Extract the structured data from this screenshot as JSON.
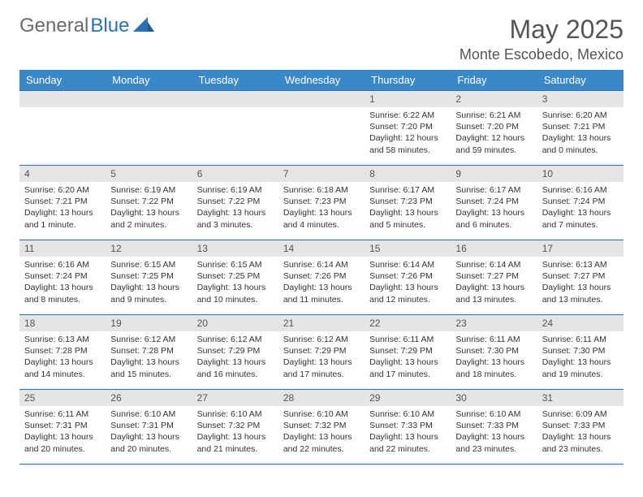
{
  "brand": {
    "part1": "General",
    "part2": "Blue"
  },
  "title": "May 2025",
  "location": "Monte Escobedo, Mexico",
  "colors": {
    "header_bg": "#3b88c9",
    "border": "#2a70b8",
    "daynum_bg": "#e5e5e5",
    "text": "#333333",
    "title_text": "#555555"
  },
  "dayHeaders": [
    "Sunday",
    "Monday",
    "Tuesday",
    "Wednesday",
    "Thursday",
    "Friday",
    "Saturday"
  ],
  "weeks": [
    [
      null,
      null,
      null,
      null,
      {
        "n": "1",
        "sr": "Sunrise: 6:22 AM",
        "ss": "Sunset: 7:20 PM",
        "dl": "Daylight: 12 hours and 58 minutes."
      },
      {
        "n": "2",
        "sr": "Sunrise: 6:21 AM",
        "ss": "Sunset: 7:20 PM",
        "dl": "Daylight: 12 hours and 59 minutes."
      },
      {
        "n": "3",
        "sr": "Sunrise: 6:20 AM",
        "ss": "Sunset: 7:21 PM",
        "dl": "Daylight: 13 hours and 0 minutes."
      }
    ],
    [
      {
        "n": "4",
        "sr": "Sunrise: 6:20 AM",
        "ss": "Sunset: 7:21 PM",
        "dl": "Daylight: 13 hours and 1 minute."
      },
      {
        "n": "5",
        "sr": "Sunrise: 6:19 AM",
        "ss": "Sunset: 7:22 PM",
        "dl": "Daylight: 13 hours and 2 minutes."
      },
      {
        "n": "6",
        "sr": "Sunrise: 6:19 AM",
        "ss": "Sunset: 7:22 PM",
        "dl": "Daylight: 13 hours and 3 minutes."
      },
      {
        "n": "7",
        "sr": "Sunrise: 6:18 AM",
        "ss": "Sunset: 7:23 PM",
        "dl": "Daylight: 13 hours and 4 minutes."
      },
      {
        "n": "8",
        "sr": "Sunrise: 6:17 AM",
        "ss": "Sunset: 7:23 PM",
        "dl": "Daylight: 13 hours and 5 minutes."
      },
      {
        "n": "9",
        "sr": "Sunrise: 6:17 AM",
        "ss": "Sunset: 7:24 PM",
        "dl": "Daylight: 13 hours and 6 minutes."
      },
      {
        "n": "10",
        "sr": "Sunrise: 6:16 AM",
        "ss": "Sunset: 7:24 PM",
        "dl": "Daylight: 13 hours and 7 minutes."
      }
    ],
    [
      {
        "n": "11",
        "sr": "Sunrise: 6:16 AM",
        "ss": "Sunset: 7:24 PM",
        "dl": "Daylight: 13 hours and 8 minutes."
      },
      {
        "n": "12",
        "sr": "Sunrise: 6:15 AM",
        "ss": "Sunset: 7:25 PM",
        "dl": "Daylight: 13 hours and 9 minutes."
      },
      {
        "n": "13",
        "sr": "Sunrise: 6:15 AM",
        "ss": "Sunset: 7:25 PM",
        "dl": "Daylight: 13 hours and 10 minutes."
      },
      {
        "n": "14",
        "sr": "Sunrise: 6:14 AM",
        "ss": "Sunset: 7:26 PM",
        "dl": "Daylight: 13 hours and 11 minutes."
      },
      {
        "n": "15",
        "sr": "Sunrise: 6:14 AM",
        "ss": "Sunset: 7:26 PM",
        "dl": "Daylight: 13 hours and 12 minutes."
      },
      {
        "n": "16",
        "sr": "Sunrise: 6:14 AM",
        "ss": "Sunset: 7:27 PM",
        "dl": "Daylight: 13 hours and 13 minutes."
      },
      {
        "n": "17",
        "sr": "Sunrise: 6:13 AM",
        "ss": "Sunset: 7:27 PM",
        "dl": "Daylight: 13 hours and 13 minutes."
      }
    ],
    [
      {
        "n": "18",
        "sr": "Sunrise: 6:13 AM",
        "ss": "Sunset: 7:28 PM",
        "dl": "Daylight: 13 hours and 14 minutes."
      },
      {
        "n": "19",
        "sr": "Sunrise: 6:12 AM",
        "ss": "Sunset: 7:28 PM",
        "dl": "Daylight: 13 hours and 15 minutes."
      },
      {
        "n": "20",
        "sr": "Sunrise: 6:12 AM",
        "ss": "Sunset: 7:29 PM",
        "dl": "Daylight: 13 hours and 16 minutes."
      },
      {
        "n": "21",
        "sr": "Sunrise: 6:12 AM",
        "ss": "Sunset: 7:29 PM",
        "dl": "Daylight: 13 hours and 17 minutes."
      },
      {
        "n": "22",
        "sr": "Sunrise: 6:11 AM",
        "ss": "Sunset: 7:29 PM",
        "dl": "Daylight: 13 hours and 17 minutes."
      },
      {
        "n": "23",
        "sr": "Sunrise: 6:11 AM",
        "ss": "Sunset: 7:30 PM",
        "dl": "Daylight: 13 hours and 18 minutes."
      },
      {
        "n": "24",
        "sr": "Sunrise: 6:11 AM",
        "ss": "Sunset: 7:30 PM",
        "dl": "Daylight: 13 hours and 19 minutes."
      }
    ],
    [
      {
        "n": "25",
        "sr": "Sunrise: 6:11 AM",
        "ss": "Sunset: 7:31 PM",
        "dl": "Daylight: 13 hours and 20 minutes."
      },
      {
        "n": "26",
        "sr": "Sunrise: 6:10 AM",
        "ss": "Sunset: 7:31 PM",
        "dl": "Daylight: 13 hours and 20 minutes."
      },
      {
        "n": "27",
        "sr": "Sunrise: 6:10 AM",
        "ss": "Sunset: 7:32 PM",
        "dl": "Daylight: 13 hours and 21 minutes."
      },
      {
        "n": "28",
        "sr": "Sunrise: 6:10 AM",
        "ss": "Sunset: 7:32 PM",
        "dl": "Daylight: 13 hours and 22 minutes."
      },
      {
        "n": "29",
        "sr": "Sunrise: 6:10 AM",
        "ss": "Sunset: 7:33 PM",
        "dl": "Daylight: 13 hours and 22 minutes."
      },
      {
        "n": "30",
        "sr": "Sunrise: 6:10 AM",
        "ss": "Sunset: 7:33 PM",
        "dl": "Daylight: 13 hours and 23 minutes."
      },
      {
        "n": "31",
        "sr": "Sunrise: 6:09 AM",
        "ss": "Sunset: 7:33 PM",
        "dl": "Daylight: 13 hours and 23 minutes."
      }
    ]
  ]
}
